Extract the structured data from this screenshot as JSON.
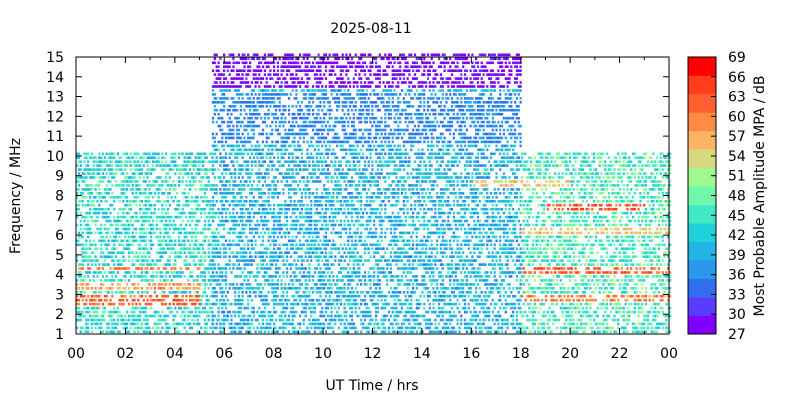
{
  "chart_data": {
    "type": "heatmap",
    "title": "2025-08-11",
    "xlabel": "UT Time / hrs",
    "ylabel": "Frequency / MHz",
    "xlim": [
      0,
      24
    ],
    "ylim": [
      1,
      15
    ],
    "x_ticks": [
      "00",
      "02",
      "04",
      "06",
      "08",
      "10",
      "12",
      "14",
      "16",
      "18",
      "20",
      "22",
      "00"
    ],
    "y_ticks": [
      "1",
      "2",
      "3",
      "4",
      "5",
      "6",
      "7",
      "8",
      "9",
      "10",
      "11",
      "12",
      "13",
      "14",
      "15"
    ],
    "colorbar": {
      "label": "Most Probable Amplitude MPA / dB",
      "range": [
        27,
        69
      ],
      "ticks": [
        "27",
        "30",
        "33",
        "36",
        "39",
        "42",
        "45",
        "48",
        "51",
        "54",
        "57",
        "60",
        "63",
        "66",
        "69"
      ],
      "colors": [
        "#8000ff",
        "#5a3cff",
        "#3070f0",
        "#2a96ec",
        "#22b4e4",
        "#1ed0d8",
        "#40e8c4",
        "#70f8aa",
        "#a0f890",
        "#d8d880",
        "#fab464",
        "#ff8a44",
        "#ff6030",
        "#ff3c1c",
        "#ff0000"
      ]
    },
    "coverage": [
      {
        "x_range": [
          0,
          5.5
        ],
        "y_range": [
          1,
          10
        ],
        "amplitude": 44
      },
      {
        "x_range": [
          5.5,
          18
        ],
        "y_range": [
          1,
          15
        ],
        "amplitude": 40
      },
      {
        "x_range": [
          18,
          24
        ],
        "y_range": [
          1,
          10
        ],
        "amplitude": 46
      }
    ],
    "bands": [
      {
        "x_range": [
          5.5,
          18
        ],
        "y_range": [
          13.2,
          15
        ],
        "amplitude": 28
      },
      {
        "x_range": [
          5.5,
          18
        ],
        "y_range": [
          10.5,
          13
        ],
        "amplitude": 36
      },
      {
        "x_range": [
          0,
          5
        ],
        "y_range": [
          2.4,
          3
        ],
        "amplitude": 62
      },
      {
        "x_range": [
          0,
          5
        ],
        "y_range": [
          3.2,
          3.6
        ],
        "amplitude": 58
      },
      {
        "x_range": [
          0,
          5
        ],
        "y_range": [
          4.1,
          4.4
        ],
        "amplitude": 60
      },
      {
        "x_range": [
          18,
          24
        ],
        "y_range": [
          2.5,
          2.9
        ],
        "amplitude": 60
      },
      {
        "x_range": [
          18,
          24
        ],
        "y_range": [
          4.0,
          4.4
        ],
        "amplitude": 62
      },
      {
        "x_range": [
          19,
          23
        ],
        "y_range": [
          7.1,
          7.5
        ],
        "amplitude": 63
      },
      {
        "x_range": [
          18,
          24
        ],
        "y_range": [
          5.9,
          6.4
        ],
        "amplitude": 55
      },
      {
        "x_range": [
          16,
          20
        ],
        "y_range": [
          8.3,
          8.8
        ],
        "amplitude": 55
      }
    ]
  }
}
